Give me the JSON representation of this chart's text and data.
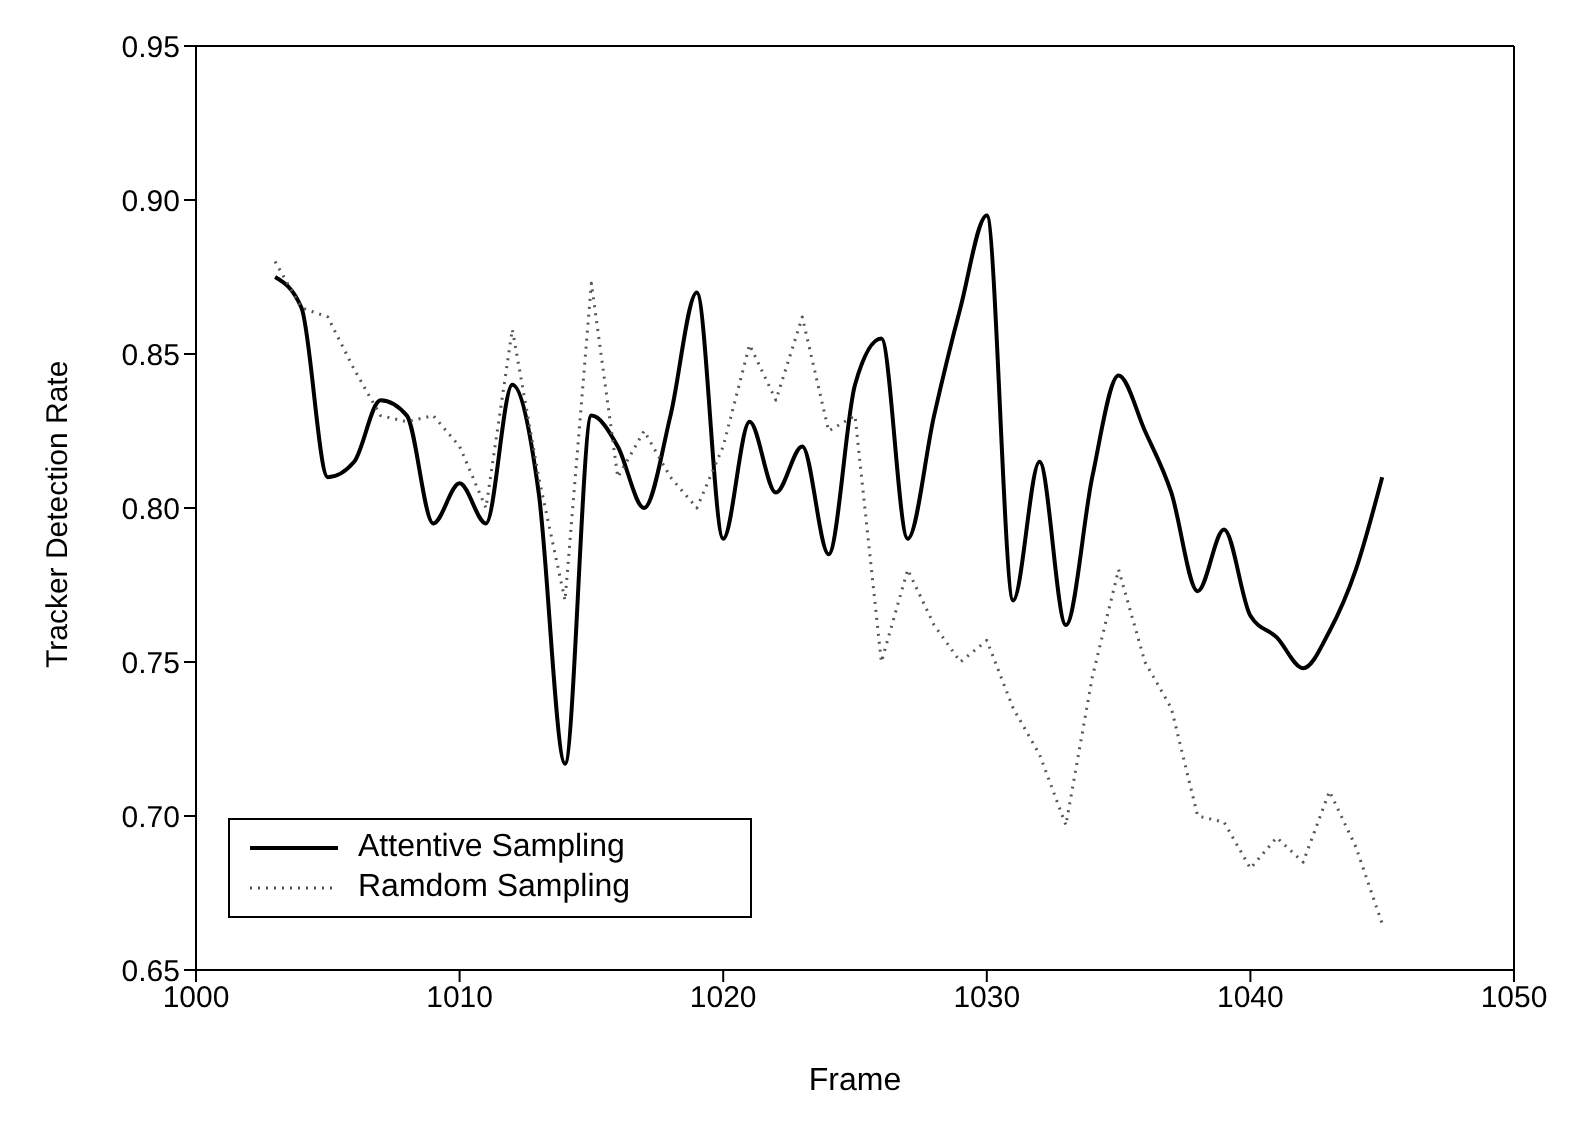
{
  "chart_data": {
    "type": "line",
    "xlabel": "Frame",
    "ylabel": "Tracker Detection Rate",
    "x": [
      1003,
      1004,
      1005,
      1006,
      1007,
      1008,
      1009,
      1010,
      1011,
      1012,
      1013,
      1014,
      1015,
      1016,
      1017,
      1018,
      1019,
      1020,
      1021,
      1022,
      1023,
      1024,
      1025,
      1026,
      1027,
      1028,
      1029,
      1030,
      1031,
      1032,
      1033,
      1034,
      1035,
      1036,
      1037,
      1038,
      1039,
      1040,
      1041,
      1042,
      1043,
      1044,
      1045
    ],
    "series": [
      {
        "name": "Attentive Sampling",
        "color": "#000000",
        "line_style": "solid",
        "values": [
          0.875,
          0.865,
          0.81,
          0.815,
          0.835,
          0.83,
          0.795,
          0.808,
          0.795,
          0.84,
          0.805,
          0.717,
          0.83,
          0.82,
          0.8,
          0.83,
          0.87,
          0.79,
          0.828,
          0.805,
          0.82,
          0.785,
          0.84,
          0.855,
          0.79,
          0.83,
          0.865,
          0.895,
          0.77,
          0.815,
          0.762,
          0.81,
          0.843,
          0.825,
          0.805,
          0.773,
          0.793,
          0.765,
          0.758,
          0.748,
          0.76,
          0.78,
          0.81
        ]
      },
      {
        "name": "Ramdom Sampling",
        "color": "#555555",
        "line_style": "dotted",
        "values": [
          0.88,
          0.865,
          0.862,
          0.845,
          0.83,
          0.828,
          0.83,
          0.82,
          0.8,
          0.858,
          0.81,
          0.77,
          0.873,
          0.81,
          0.825,
          0.81,
          0.8,
          0.82,
          0.853,
          0.835,
          0.862,
          0.825,
          0.83,
          0.75,
          0.78,
          0.762,
          0.75,
          0.757,
          0.735,
          0.72,
          0.697,
          0.745,
          0.78,
          0.75,
          0.735,
          0.7,
          0.698,
          0.683,
          0.693,
          0.685,
          0.708,
          0.69,
          0.665
        ]
      }
    ],
    "xlim": [
      1000,
      1050
    ],
    "xticks": [
      1000,
      1010,
      1020,
      1030,
      1040,
      1050
    ],
    "ylim": [
      0.65,
      0.95
    ],
    "yticks": [
      {
        "value": 0.65,
        "label": "0.65"
      },
      {
        "value": 0.7,
        "label": "0.70"
      },
      {
        "value": 0.75,
        "label": "0.75"
      },
      {
        "value": 0.8,
        "label": "0.80"
      },
      {
        "value": 0.85,
        "label": "0.85"
      },
      {
        "value": 0.9,
        "label": "0.90"
      },
      {
        "value": 0.95,
        "label": "0.95"
      }
    ],
    "grid": false,
    "legend": "bottom left",
    "marker": "none"
  }
}
